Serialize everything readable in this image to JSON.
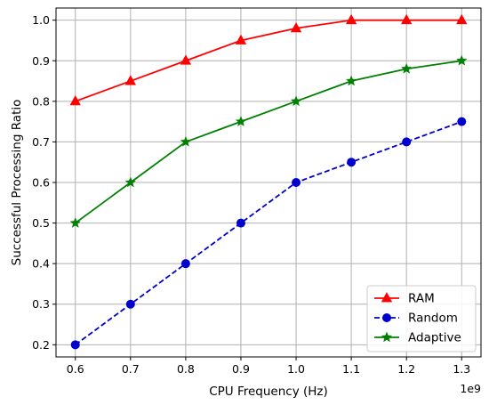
{
  "chart_data": {
    "type": "line",
    "title": "",
    "xlabel": "CPU Frequency (Hz)",
    "ylabel": "Successful Processing Ratio",
    "x_offset_label": "1e9",
    "x": [
      0.6,
      0.7,
      0.8,
      0.9,
      1.0,
      1.1,
      1.2,
      1.3
    ],
    "xlim": [
      0.565,
      1.335
    ],
    "ylim": [
      0.17,
      1.03
    ],
    "xticks": [
      "0.6",
      "0.7",
      "0.8",
      "0.9",
      "1.0",
      "1.1",
      "1.2",
      "1.3"
    ],
    "yticks": [
      "0.2",
      "0.3",
      "0.4",
      "0.5",
      "0.6",
      "0.7",
      "0.8",
      "0.9",
      "1.0"
    ],
    "grid": true,
    "legend_position": "bottom-right",
    "series": [
      {
        "name": "RAM",
        "values": [
          0.8,
          0.85,
          0.9,
          0.95,
          0.98,
          1.0,
          1.0,
          1.0
        ],
        "color": "#ff0000",
        "marker": "triangle",
        "linestyle": "solid"
      },
      {
        "name": "Random",
        "values": [
          0.2,
          0.3,
          0.4,
          0.5,
          0.6,
          0.65,
          0.7,
          0.75
        ],
        "color": "#0000cc",
        "marker": "circle",
        "linestyle": "dashed"
      },
      {
        "name": "Adaptive",
        "values": [
          0.5,
          0.6,
          0.7,
          0.75,
          0.8,
          0.85,
          0.88,
          0.9
        ],
        "color": "#008000",
        "marker": "star",
        "linestyle": "solid"
      }
    ]
  }
}
